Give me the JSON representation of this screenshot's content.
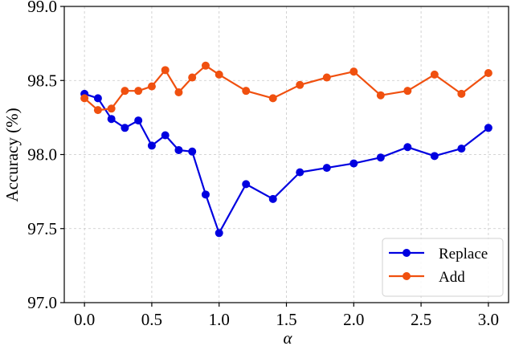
{
  "chart_data": {
    "type": "line",
    "title": "",
    "xlabel": "α",
    "ylabel": "Accuracy (%)",
    "xlim": [
      -0.15,
      3.15
    ],
    "ylim": [
      97.0,
      99.0
    ],
    "xticks": [
      0.0,
      0.5,
      1.0,
      1.5,
      2.0,
      2.5,
      3.0
    ],
    "xtick_labels": [
      "0.0",
      "0.5",
      "1.0",
      "1.5",
      "2.0",
      "2.5",
      "3.0"
    ],
    "yticks": [
      97.0,
      97.5,
      98.0,
      98.5,
      99.0
    ],
    "ytick_labels": [
      "97.0",
      "97.5",
      "98.0",
      "98.5",
      "99.0"
    ],
    "grid": true,
    "legend_position": "lower right",
    "series": [
      {
        "name": "Replace",
        "color": "#0000e0",
        "x": [
          0.0,
          0.1,
          0.2,
          0.3,
          0.4,
          0.5,
          0.6,
          0.7,
          0.8,
          0.9,
          1.0,
          1.2,
          1.4,
          1.6,
          1.8,
          2.0,
          2.2,
          2.4,
          2.6,
          2.8,
          3.0
        ],
        "values": [
          98.41,
          98.38,
          98.24,
          98.18,
          98.23,
          98.06,
          98.13,
          98.03,
          98.02,
          97.73,
          97.47,
          97.8,
          97.7,
          97.88,
          97.91,
          97.94,
          97.98,
          98.05,
          97.99,
          98.04,
          98.18
        ]
      },
      {
        "name": "Add",
        "color": "#f0500f",
        "x": [
          0.0,
          0.1,
          0.2,
          0.3,
          0.4,
          0.5,
          0.6,
          0.7,
          0.8,
          0.9,
          1.0,
          1.2,
          1.4,
          1.6,
          1.8,
          2.0,
          2.2,
          2.4,
          2.6,
          2.8,
          3.0
        ],
        "values": [
          98.38,
          98.3,
          98.31,
          98.43,
          98.43,
          98.46,
          98.57,
          98.42,
          98.52,
          98.6,
          98.54,
          98.43,
          98.38,
          98.47,
          98.52,
          98.56,
          98.4,
          98.43,
          98.54,
          98.41,
          98.55
        ]
      }
    ]
  }
}
